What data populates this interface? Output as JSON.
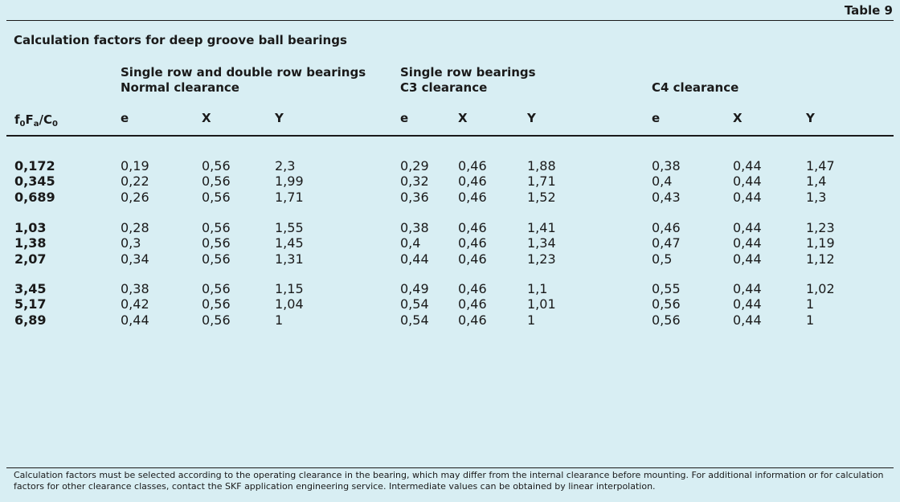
{
  "table_label": "Table 9",
  "title": "Calculation factors for deep groove ball bearings",
  "groups": [
    {
      "line1": "Single row and double row bearings",
      "line2": "Normal clearance"
    },
    {
      "line1": "Single row bearings",
      "line2": "C3 clearance"
    },
    {
      "line1": "",
      "line2": "C4 clearance"
    }
  ],
  "row_header": {
    "f": "f",
    "sub0": "0",
    "F": "F",
    "suba": "a",
    "slash": "/C",
    "subc": "0"
  },
  "col_headers": [
    "e",
    "X",
    "Y",
    "e",
    "X",
    "Y",
    "e",
    "X",
    "Y"
  ],
  "row_groups": [
    {
      "labels": [
        "0,172",
        "0,345",
        "0,689"
      ],
      "cols": [
        [
          "0,19",
          "0,22",
          "0,26"
        ],
        [
          "0,56",
          "0,56",
          "0,56"
        ],
        [
          "2,3",
          "1,99",
          "1,71"
        ],
        [
          "0,29",
          "0,32",
          "0,36"
        ],
        [
          "0,46",
          "0,46",
          "0,46"
        ],
        [
          "1,88",
          "1,71",
          "1,52"
        ],
        [
          "0,38",
          "0,4",
          "0,43"
        ],
        [
          "0,44",
          "0,44",
          "0,44"
        ],
        [
          "1,47",
          "1,4",
          "1,3"
        ]
      ]
    },
    {
      "labels": [
        "1,03",
        "1,38",
        "2,07"
      ],
      "cols": [
        [
          "0,28",
          "0,3",
          "0,34"
        ],
        [
          "0,56",
          "0,56",
          "0,56"
        ],
        [
          "1,55",
          "1,45",
          "1,31"
        ],
        [
          "0,38",
          "0,4",
          "0,44"
        ],
        [
          "0,46",
          "0,46",
          "0,46"
        ],
        [
          "1,41",
          "1,34",
          "1,23"
        ],
        [
          "0,46",
          "0,47",
          "0,5"
        ],
        [
          "0,44",
          "0,44",
          "0,44"
        ],
        [
          "1,23",
          "1,19",
          "1,12"
        ]
      ]
    },
    {
      "labels": [
        "3,45",
        "5,17",
        "6,89"
      ],
      "cols": [
        [
          "0,38",
          "0,42",
          "0,44"
        ],
        [
          "0,56",
          "0,56",
          "0,56"
        ],
        [
          "1,15",
          "1,04",
          "1"
        ],
        [
          "0,49",
          "0,54",
          "0,54"
        ],
        [
          "0,46",
          "0,46",
          "0,46"
        ],
        [
          "1,1",
          "1,01",
          "1"
        ],
        [
          "0,55",
          "0,56",
          "0,56"
        ],
        [
          "0,44",
          "0,44",
          "0,44"
        ],
        [
          "1,02",
          "1",
          "1"
        ]
      ]
    }
  ],
  "note": "Calculation factors must be selected according to the operating clearance in the bearing, which may differ from the internal clearance before mounting. For additional information or for calculation factors for other clearance classes, contact the SKF application engineering service. Intermediate values can be obtained by linear interpolation."
}
